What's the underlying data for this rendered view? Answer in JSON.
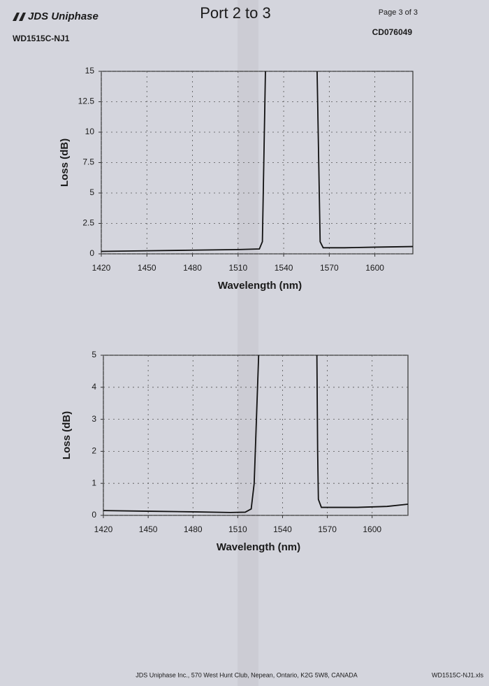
{
  "header": {
    "logo": "JDS Uniphase",
    "part_number": "WD1515C-NJ1",
    "title": "Port 2 to 3",
    "page": "Page 3 of 3",
    "serial": "CD076049"
  },
  "footer": {
    "address": "JDS Uniphase Inc., 570 West Hunt Club, Nepean, Ontario, K2G 5W8, CANADA",
    "file": "WD1515C-NJ1.xls"
  },
  "chart_data": [
    {
      "type": "line",
      "x_label": "Wavelength (nm)",
      "y_label": "Loss (dB)",
      "x": [
        1420,
        1450,
        1480,
        1510,
        1524,
        1526,
        1527,
        1528,
        1545,
        1562,
        1563,
        1564,
        1566,
        1580,
        1600,
        1625
      ],
      "series": [
        {
          "color": "#111111",
          "values": [
            0.2,
            0.25,
            0.3,
            0.35,
            0.4,
            1,
            8,
            15,
            null,
            15,
            8,
            1,
            0.5,
            0.5,
            0.55,
            0.6
          ]
        }
      ],
      "xlim": [
        1420,
        1625
      ],
      "ylim": [
        0,
        15
      ],
      "xticks": [
        1420,
        1450,
        1480,
        1510,
        1540,
        1570,
        1600
      ],
      "yticks": [
        0,
        2.5,
        5,
        7.5,
        10,
        12.5,
        15
      ],
      "grid": true
    },
    {
      "type": "line",
      "x_label": "Wavelength (nm)",
      "y_label": "Loss (dB)",
      "x": [
        1420,
        1450,
        1480,
        1505,
        1515,
        1519,
        1521,
        1522.5,
        1524,
        1545,
        1563,
        1563.5,
        1564,
        1566,
        1590,
        1610,
        1624
      ],
      "series": [
        {
          "color": "#111111",
          "values": [
            0.15,
            0.13,
            0.11,
            0.09,
            0.1,
            0.2,
            1,
            3,
            5,
            null,
            5,
            2,
            0.5,
            0.25,
            0.25,
            0.28,
            0.35
          ]
        }
      ],
      "xlim": [
        1420,
        1624
      ],
      "ylim": [
        0,
        5
      ],
      "xticks": [
        1420,
        1450,
        1480,
        1510,
        1540,
        1570,
        1600
      ],
      "yticks": [
        0,
        1,
        2,
        3,
        4,
        5
      ],
      "grid": true
    }
  ]
}
